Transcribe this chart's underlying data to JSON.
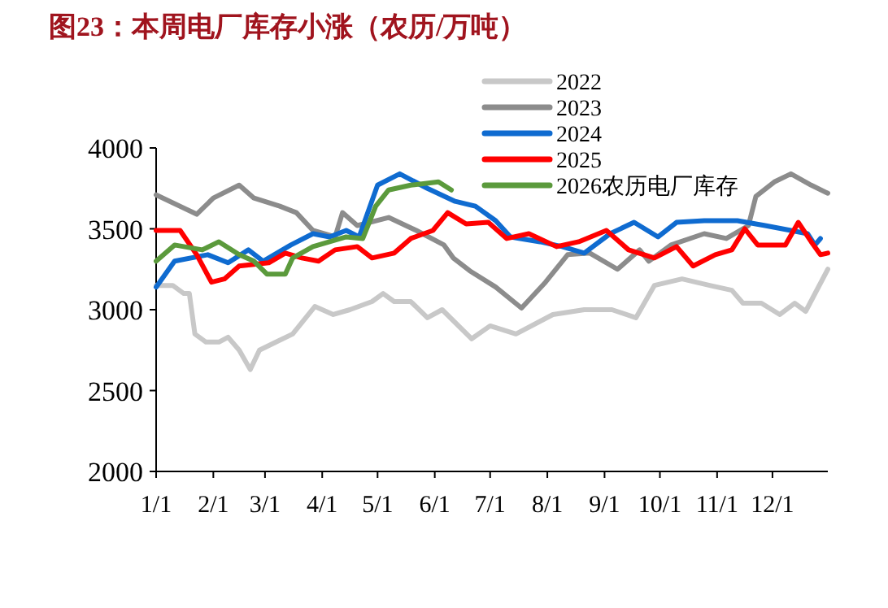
{
  "chart_data": {
    "type": "line",
    "title": "图23：本周电厂库存小涨（农历/万吨）",
    "xlim": [
      "--01-01",
      "--12-31"
    ],
    "xticks": [
      {
        "value": "--01-01",
        "label": "1/1"
      },
      {
        "value": "--02-01",
        "label": "2/1"
      },
      {
        "value": "--03-01",
        "label": "3/1"
      },
      {
        "value": "--04-01",
        "label": "4/1"
      },
      {
        "value": "--05-01",
        "label": "5/1"
      },
      {
        "value": "--06-01",
        "label": "6/1"
      },
      {
        "value": "--07-01",
        "label": "7/1"
      },
      {
        "value": "--08-01",
        "label": "8/1"
      },
      {
        "value": "--09-01",
        "label": "9/1"
      },
      {
        "value": "--10-01",
        "label": "10/1"
      },
      {
        "value": "--11-01",
        "label": "11/1"
      },
      {
        "value": "--12-01",
        "label": "12/1"
      }
    ],
    "ylim": [
      2000,
      4000
    ],
    "yticks": [
      2000,
      2500,
      3000,
      3500,
      4000
    ],
    "legend": "top right",
    "grid": false,
    "marker": "none",
    "line_style": "solid",
    "series": [
      {
        "name": "2022",
        "color": "#c8c8c8",
        "x": [
          "--01-01",
          "--01-10",
          "--01-16",
          "--01-19",
          "--01-22",
          "--01-28",
          "--02-04",
          "--02-09",
          "--02-15",
          "--02-21",
          "--02-26",
          "--03-07",
          "--03-16",
          "--03-28",
          "--04-07",
          "--04-16",
          "--04-28",
          "--05-04",
          "--05-10",
          "--05-19",
          "--05-28",
          "--06-05",
          "--06-21",
          "--07-01",
          "--07-15",
          "--08-04",
          "--08-21",
          "--09-05",
          "--09-18",
          "--09-28",
          "--10-13",
          "--10-28",
          "--11-09",
          "--11-15",
          "--11-25",
          "--12-05",
          "--12-13",
          "--12-19",
          "--12-31"
        ],
        "values": [
          3150,
          3150,
          3100,
          3100,
          2850,
          2800,
          2800,
          2830,
          2750,
          2630,
          2750,
          2800,
          2850,
          3020,
          2970,
          3000,
          3050,
          3100,
          3050,
          3050,
          2950,
          3000,
          2820,
          2900,
          2850,
          2970,
          3000,
          3000,
          2950,
          3150,
          3190,
          3150,
          3120,
          3040,
          3040,
          2970,
          3040,
          2990,
          3250
        ]
      },
      {
        "name": "2023",
        "color": "#8c8c8c",
        "x": [
          "--01-01",
          "--01-23",
          "--02-01",
          "--02-15",
          "--02-23",
          "--03-09",
          "--03-18",
          "--03-27",
          "--04-08",
          "--04-12",
          "--04-20",
          "--05-07",
          "--05-22",
          "--06-06",
          "--06-11",
          "--06-20",
          "--07-04",
          "--07-18",
          "--07-31",
          "--08-12",
          "--08-24",
          "--09-08",
          "--09-20",
          "--09-25",
          "--10-07",
          "--10-25",
          "--11-06",
          "--11-18",
          "--11-22",
          "--12-02",
          "--12-11",
          "--12-22",
          "--12-31"
        ],
        "values": [
          3710,
          3590,
          3690,
          3770,
          3690,
          3640,
          3600,
          3490,
          3450,
          3600,
          3520,
          3570,
          3490,
          3400,
          3320,
          3240,
          3140,
          3010,
          3170,
          3340,
          3350,
          3250,
          3370,
          3300,
          3400,
          3470,
          3440,
          3520,
          3700,
          3790,
          3840,
          3770,
          3720
        ]
      },
      {
        "name": "2024",
        "color": "#0f6bd0",
        "x": [
          "--01-01",
          "--01-11",
          "--01-29",
          "--02-09",
          "--02-20",
          "--02-28",
          "--03-15",
          "--03-27",
          "--04-05",
          "--04-14",
          "--04-21",
          "--05-01",
          "--05-13",
          "--05-28",
          "--06-12",
          "--06-23",
          "--07-04",
          "--07-12",
          "--07-28",
          "--08-09",
          "--08-21",
          "--09-04",
          "--09-17",
          "--09-30",
          "--10-10",
          "--10-25",
          "--11-12",
          "--11-27",
          "--12-11",
          "--12-20",
          "--12-24",
          "--12-27"
        ],
        "values": [
          3140,
          3300,
          3340,
          3290,
          3370,
          3300,
          3400,
          3470,
          3450,
          3490,
          3450,
          3770,
          3840,
          3750,
          3670,
          3640,
          3550,
          3450,
          3420,
          3390,
          3350,
          3470,
          3540,
          3450,
          3540,
          3550,
          3550,
          3520,
          3490,
          3470,
          3400,
          3440
        ]
      },
      {
        "name": "2025",
        "color": "#ff0000",
        "x": [
          "--01-01",
          "--01-14",
          "--01-23",
          "--01-31",
          "--02-07",
          "--02-15",
          "--03-03",
          "--03-12",
          "--03-21",
          "--03-30",
          "--04-08",
          "--04-20",
          "--04-28",
          "--05-10",
          "--05-19",
          "--05-31",
          "--06-08",
          "--06-18",
          "--06-30",
          "--07-10",
          "--07-22",
          "--08-06",
          "--08-18",
          "--09-02",
          "--09-14",
          "--09-28",
          "--10-10",
          "--10-19",
          "--10-31",
          "--11-09",
          "--11-16",
          "--11-23",
          "--12-08",
          "--12-15",
          "--12-22",
          "--12-27",
          "--12-31"
        ],
        "values": [
          3490,
          3490,
          3340,
          3170,
          3190,
          3270,
          3290,
          3350,
          3320,
          3300,
          3370,
          3390,
          3320,
          3350,
          3440,
          3490,
          3600,
          3530,
          3540,
          3440,
          3470,
          3390,
          3420,
          3490,
          3370,
          3320,
          3390,
          3270,
          3340,
          3370,
          3500,
          3400,
          3400,
          3540,
          3420,
          3340,
          3350
        ]
      },
      {
        "name": "2026农历电厂库存",
        "color": "#5b9a3c",
        "x": [
          "--01-01",
          "--01-11",
          "--01-26",
          "--02-04",
          "--02-15",
          "--02-23",
          "--03-02",
          "--03-12",
          "--03-16",
          "--03-27",
          "--04-14",
          "--04-23",
          "--04-30",
          "--05-07",
          "--05-19",
          "--06-03",
          "--06-10"
        ],
        "values": [
          3300,
          3400,
          3370,
          3420,
          3340,
          3300,
          3220,
          3220,
          3320,
          3390,
          3450,
          3440,
          3640,
          3740,
          3770,
          3790,
          3740
        ]
      }
    ]
  }
}
